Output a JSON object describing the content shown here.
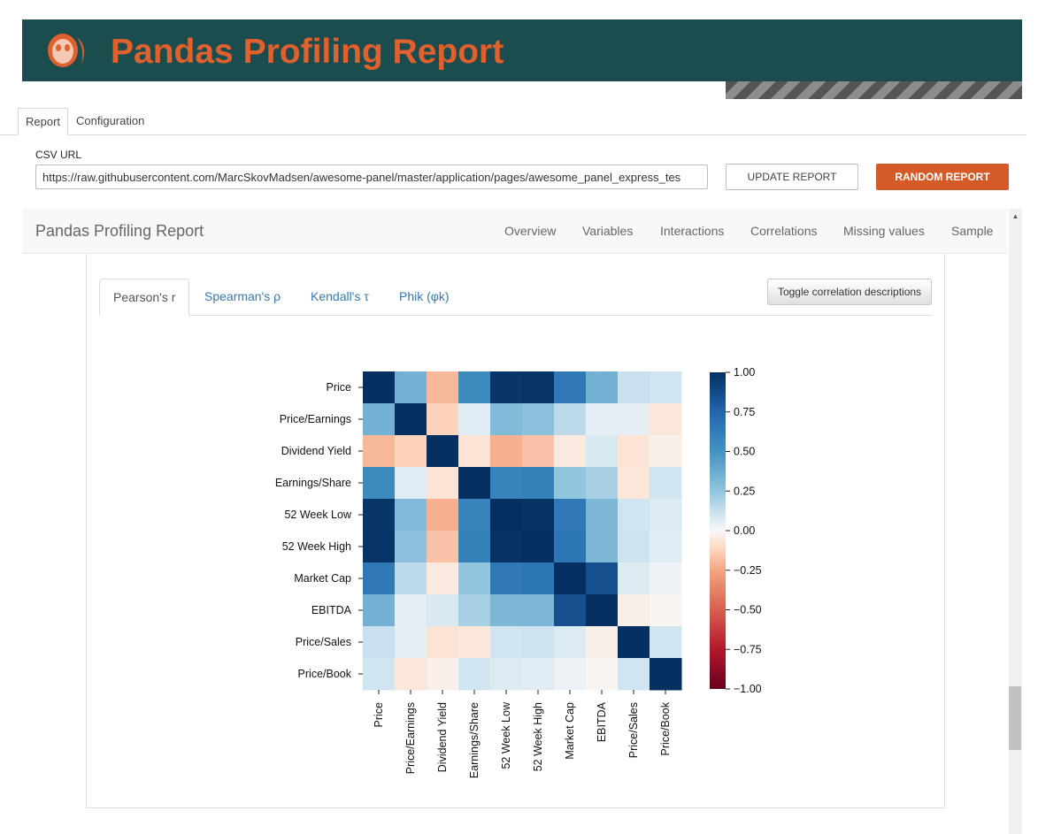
{
  "app": {
    "title": "Pandas Profiling Report"
  },
  "tabs": [
    {
      "label": "Report"
    },
    {
      "label": "Configuration"
    }
  ],
  "csv": {
    "label": "CSV URL",
    "value": "https://raw.githubusercontent.com/MarcSkovMadsen/awesome-panel/master/application/pages/awesome_panel_express_tes"
  },
  "buttons": {
    "update": "UPDATE REPORT",
    "random": "RANDOM REPORT",
    "toggle": "Toggle correlation descriptions"
  },
  "report_nav": {
    "brand": "Pandas Profiling Report",
    "links": [
      "Overview",
      "Variables",
      "Interactions",
      "Correlations",
      "Missing values",
      "Sample"
    ]
  },
  "correlation_tabs": [
    "Pearson's r",
    "Spearman's ρ",
    "Kendall's τ",
    "Phik (φk)"
  ],
  "colors": {
    "header_bg": "#1b4c4e",
    "accent": "#e0602e",
    "random_button": "#d45a28",
    "link": "#337ab7"
  },
  "chart_data": {
    "type": "heatmap",
    "colormap": "RdBu",
    "variables": [
      "Price",
      "Price/Earnings",
      "Dividend Yield",
      "Earnings/Share",
      "52 Week Low",
      "52 Week High",
      "Market Cap",
      "EBITDA",
      "Price/Sales",
      "Price/Book"
    ],
    "matrix": [
      [
        1.0,
        0.35,
        -0.2,
        0.55,
        0.97,
        0.98,
        0.65,
        0.35,
        0.12,
        0.1
      ],
      [
        0.35,
        1.0,
        -0.12,
        0.06,
        0.3,
        0.27,
        0.15,
        0.05,
        0.05,
        -0.06
      ],
      [
        -0.2,
        -0.12,
        1.0,
        -0.07,
        -0.22,
        -0.17,
        -0.05,
        0.08,
        -0.07,
        -0.03
      ],
      [
        0.55,
        0.06,
        -0.07,
        1.0,
        0.59,
        0.6,
        0.25,
        0.2,
        -0.06,
        0.1
      ],
      [
        0.97,
        0.3,
        -0.22,
        0.59,
        1.0,
        0.99,
        0.65,
        0.32,
        0.1,
        0.07
      ],
      [
        0.98,
        0.27,
        -0.17,
        0.6,
        0.99,
        1.0,
        0.66,
        0.32,
        0.11,
        0.06
      ],
      [
        0.65,
        0.15,
        -0.05,
        0.25,
        0.65,
        0.66,
        1.0,
        0.85,
        0.07,
        0.03
      ],
      [
        0.35,
        0.05,
        0.08,
        0.2,
        0.32,
        0.32,
        0.85,
        1.0,
        -0.03,
        -0.01
      ],
      [
        0.12,
        0.05,
        -0.07,
        -0.06,
        0.1,
        0.11,
        0.07,
        -0.03,
        1.0,
        0.1
      ],
      [
        0.1,
        -0.06,
        -0.03,
        0.1,
        0.07,
        0.06,
        0.03,
        -0.01,
        0.1,
        1.0
      ]
    ],
    "colorbar": {
      "min": -1.0,
      "max": 1.0,
      "ticks": [
        "1.00",
        "0.75",
        "0.50",
        "0.25",
        "0.00",
        "−0.25",
        "−0.50",
        "−0.75",
        "−1.00"
      ]
    }
  }
}
